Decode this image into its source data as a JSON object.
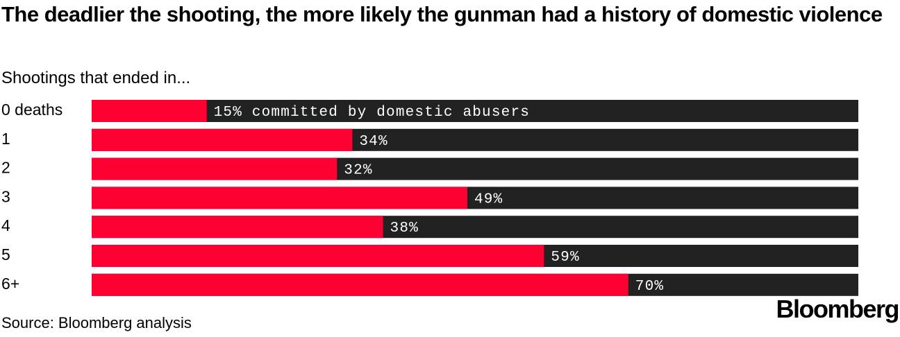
{
  "title": "The deadlier the shooting, the more likely the gunman had a history of domestic violence",
  "subtitle": "Shootings that ended in...",
  "source": "Source: Bloomberg analysis",
  "logo": "Bloomberg",
  "colors": {
    "value_bar": "#ff0033",
    "remainder_bar": "#222222",
    "bar_label": "#ffffff",
    "text": "#000000"
  },
  "chart_data": {
    "type": "bar",
    "orientation": "horizontal",
    "stacked_to_100": true,
    "categories": [
      "0 deaths",
      "1",
      "2",
      "3",
      "4",
      "5",
      "6+"
    ],
    "series": [
      {
        "values": [
          15,
          34,
          32,
          49,
          38,
          59,
          70
        ]
      }
    ],
    "data_labels": [
      "15% committed by domestic abusers",
      "34%",
      "32%",
      "49%",
      "38%",
      "59%",
      "70%"
    ],
    "xlim": [
      0,
      100
    ],
    "grid": false,
    "legend": "none"
  }
}
